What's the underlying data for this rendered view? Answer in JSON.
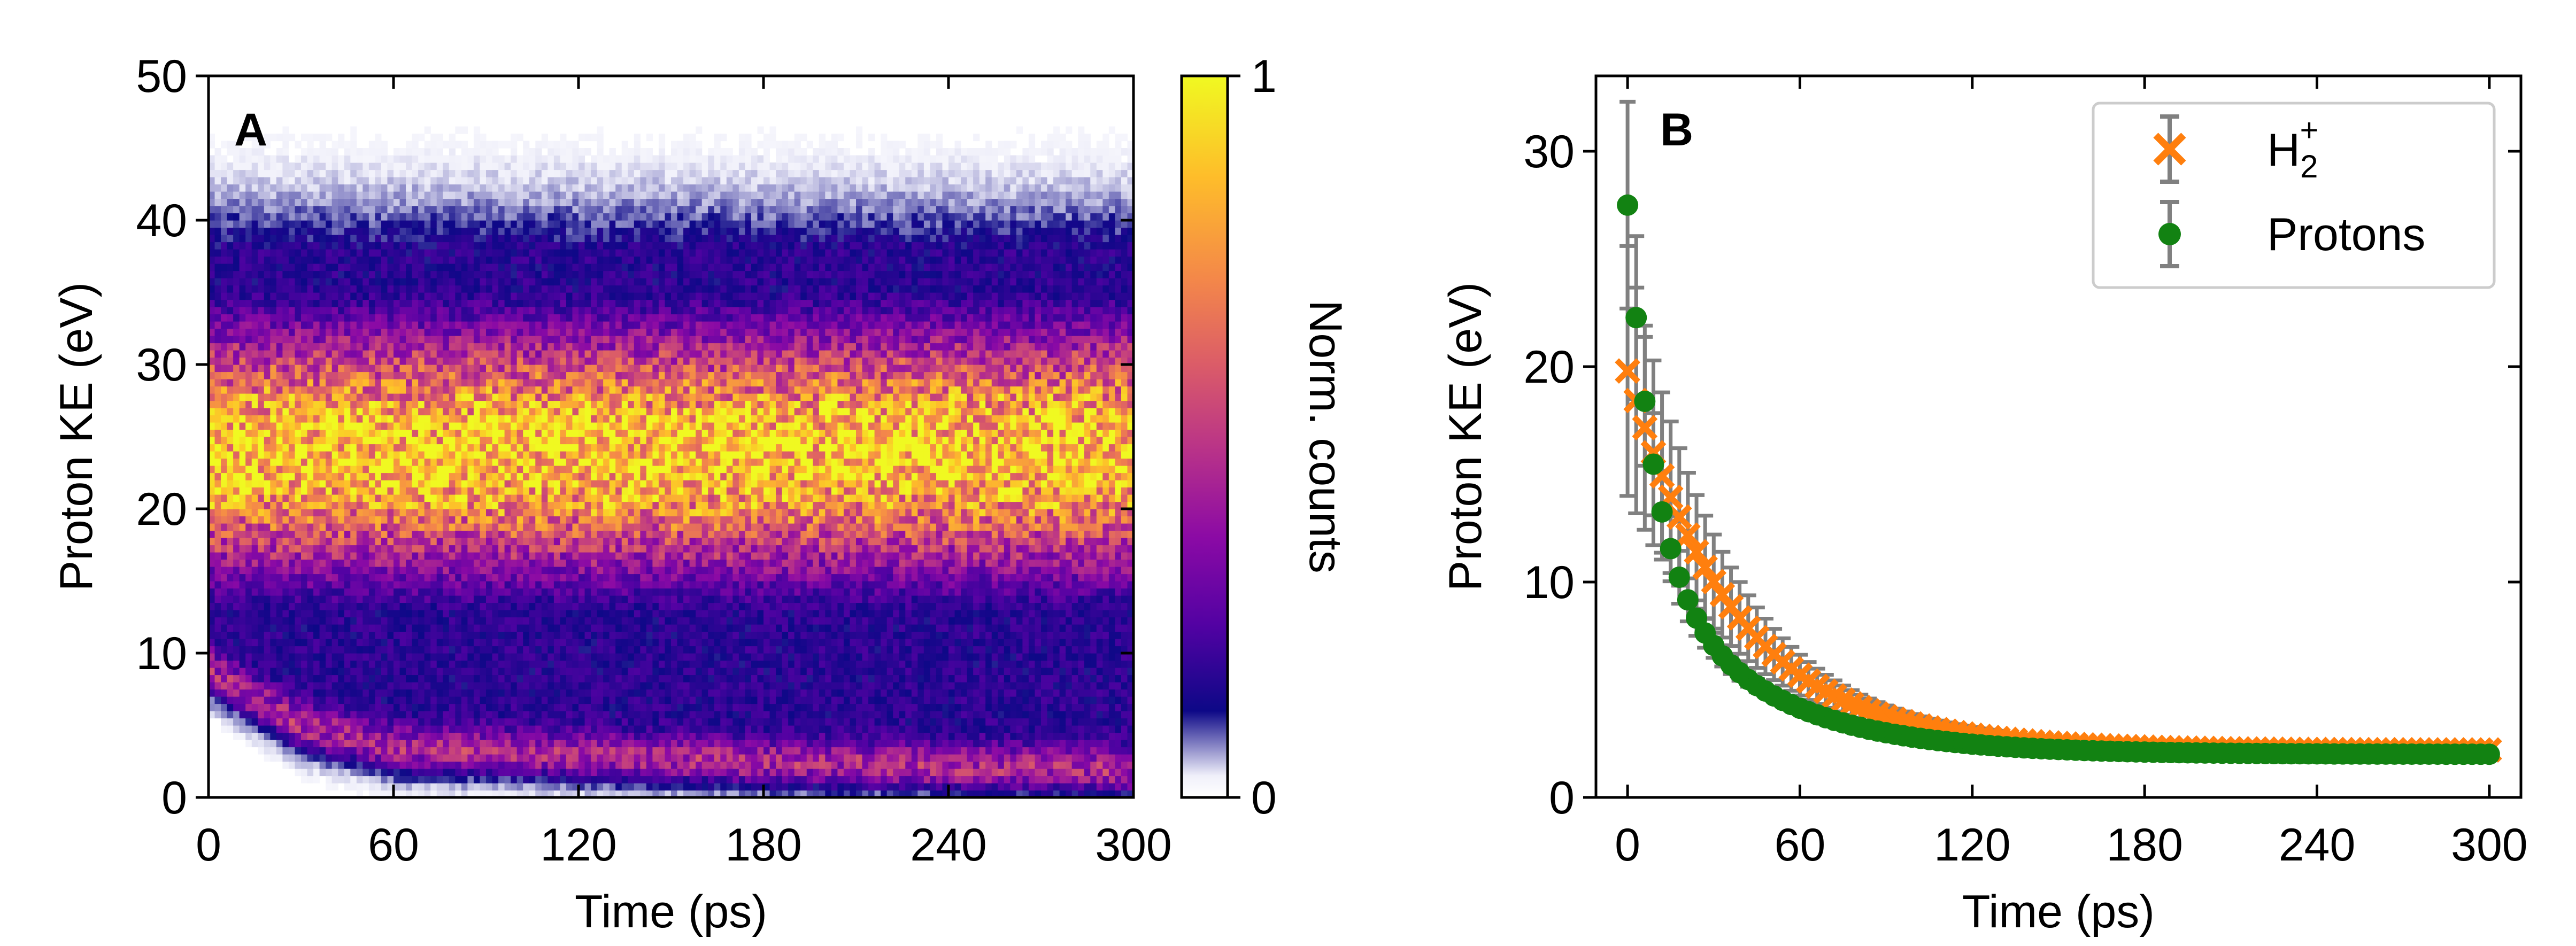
{
  "chart_data": [
    {
      "panel_label": "A",
      "type": "heatmap",
      "xlabel": "Time (ps)",
      "ylabel": "Proton KE (eV)",
      "xlim": [
        0,
        300
      ],
      "ylim": [
        0,
        50
      ],
      "xticks": [
        0,
        60,
        120,
        180,
        240,
        300
      ],
      "yticks": [
        0,
        10,
        20,
        30,
        40,
        50
      ],
      "colorbar": {
        "label": "Norm. counts",
        "range": [
          0,
          1
        ],
        "ticks": [
          0,
          1
        ],
        "colormap": "plasma",
        "colormap_stops": [
          "#ffffff",
          "#f0f0fa",
          "#0d0887",
          "#5302a3",
          "#8b0aa5",
          "#b83289",
          "#db5c68",
          "#f48849",
          "#febd2a",
          "#f0f921"
        ]
      },
      "model": {
        "description": "Normalized count distribution of proton kinetic energy versus time",
        "main_band": {
          "center_ev": 24,
          "sigma_ev": 6,
          "peak_norm": 0.9
        },
        "outer_envelope_ev": [
          3,
          38
        ],
        "low_energy_band": {
          "energy_ev_at_times": [
            [
              0,
              9
            ],
            [
              30,
              5
            ],
            [
              60,
              3.5
            ],
            [
              120,
              3
            ],
            [
              180,
              2.5
            ],
            [
              240,
              2.2
            ],
            [
              300,
              2
            ]
          ]
        }
      }
    },
    {
      "panel_label": "B",
      "type": "scatter",
      "xlabel": "Time (ps)",
      "ylabel": "Proton KE (eV)",
      "xlim": [
        -11,
        311
      ],
      "ylim": [
        0,
        33.5
      ],
      "xticks": [
        0,
        60,
        120,
        180,
        240,
        300
      ],
      "yticks": [
        0,
        10,
        20,
        30
      ],
      "legend_position": "top-right",
      "series": [
        {
          "name": "H2+",
          "label_main": "H",
          "label_sub": "2",
          "label_sup": "+",
          "marker": "x",
          "color": "#ff7f0e",
          "errorbar_color": "#808080",
          "model": {
            "type": "decay",
            "a": 2.2,
            "b": 17.6,
            "tau_ps": 37
          },
          "x_range": [
            0,
            300
          ],
          "x_step": 3
        },
        {
          "name": "Protons",
          "label_main": "Protons",
          "marker": "o",
          "color": "#128212",
          "errorbar_color": "#808080",
          "model": {
            "type": "double_decay",
            "a": 2.0,
            "b1": 16,
            "tau1_ps": 9,
            "b2": 9.5,
            "tau2_ps": 40
          },
          "x_range": [
            0,
            300
          ],
          "x_step": 3
        }
      ]
    }
  ]
}
